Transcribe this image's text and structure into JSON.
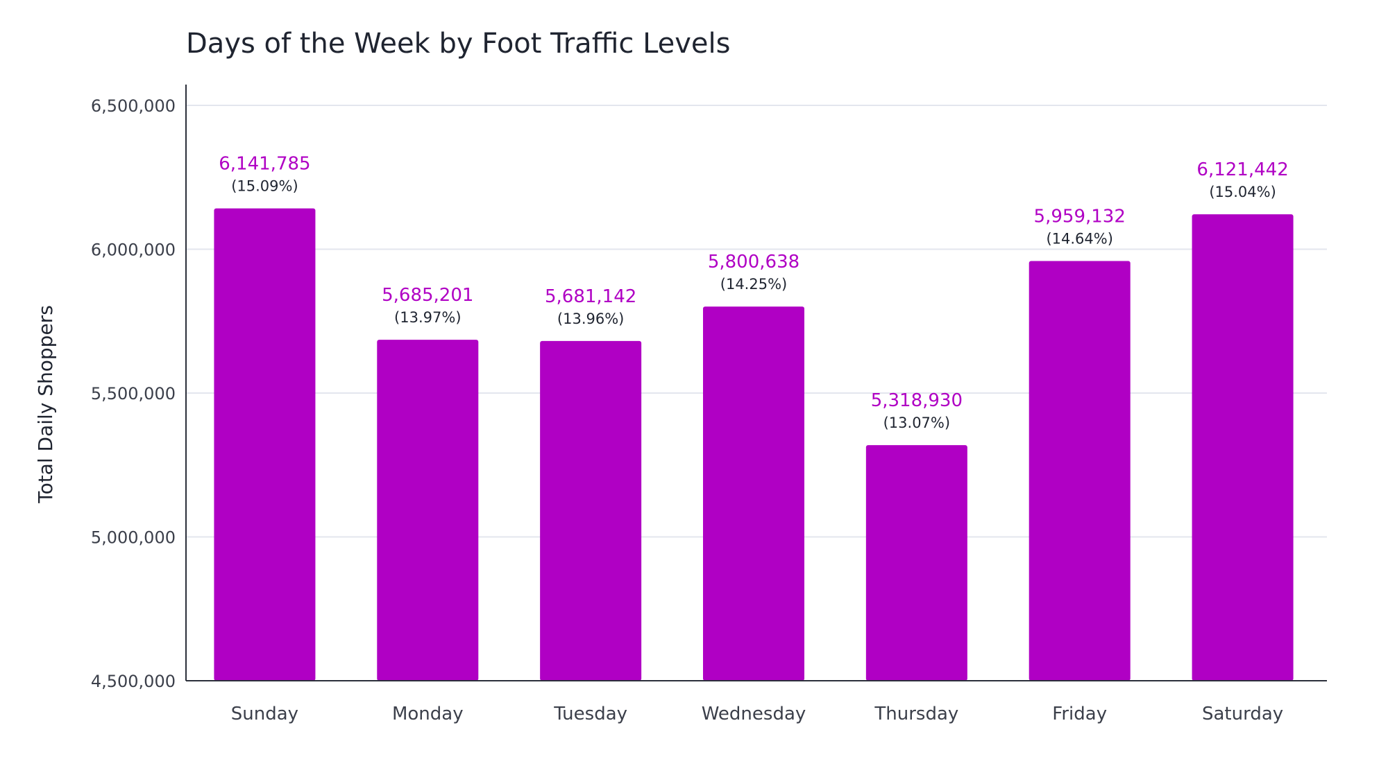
{
  "chart_data": {
    "type": "bar",
    "title": "Days of the Week by Foot Traffic Levels",
    "xlabel": "",
    "ylabel": "Total Daily Shoppers",
    "categories": [
      "Sunday",
      "Monday",
      "Tuesday",
      "Wednesday",
      "Thursday",
      "Friday",
      "Saturday"
    ],
    "values": [
      6141785,
      5685201,
      5681142,
      5800638,
      5318930,
      5959132,
      6121442
    ],
    "value_labels": [
      "6,141,785",
      "5,685,201",
      "5,681,142",
      "5,800,638",
      "5,318,930",
      "5,959,132",
      "6,121,442"
    ],
    "percent_labels": [
      "(15.09%)",
      "(13.97%)",
      "(13.96%)",
      "(14.25%)",
      "(13.07%)",
      "(14.64%)",
      "(15.04%)"
    ],
    "ylim": [
      4500000,
      6500000
    ],
    "yticks": [
      4500000,
      5000000,
      5500000,
      6000000,
      6500000
    ],
    "ytick_labels": [
      "4,500,000",
      "5,000,000",
      "5,500,000",
      "6,000,000",
      "6,500,000"
    ],
    "grid": true,
    "colors": {
      "bar": "#b000c4",
      "value_label": "#b000c4",
      "grid": "#e3e6ee",
      "axis": "#2b2f3a"
    }
  }
}
